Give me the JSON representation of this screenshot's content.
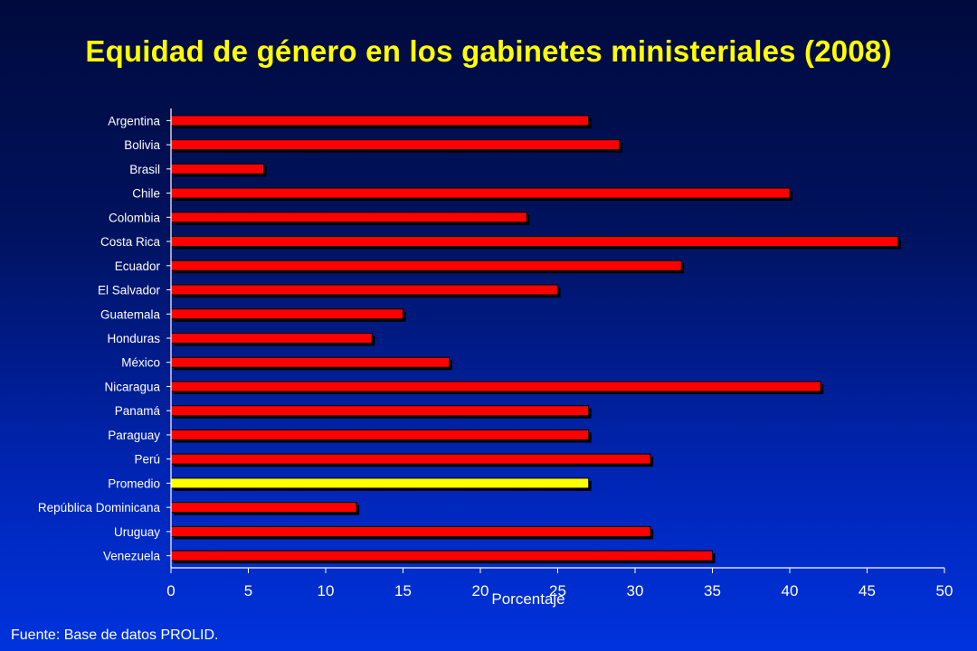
{
  "title": "Equidad de género en los gabinetes ministeriales (2008)",
  "source": "Fuente: Base de datos PROLID.",
  "colors": {
    "bar": "#ff0000",
    "highlight": "#ffff00",
    "shadow": "#000000",
    "axis": "#ffffff",
    "text": "#ffffff",
    "title": "#ffff00"
  },
  "chart_data": {
    "type": "bar",
    "orientation": "horizontal",
    "title": "Equidad de género en los gabinetes ministeriales (2008)",
    "xlabel": "Porcentaje",
    "ylabel": "",
    "xlim": [
      0,
      50
    ],
    "x_ticks": [
      "0",
      "5",
      "10",
      "15",
      "20",
      "25",
      "30",
      "35",
      "40",
      "45",
      "50"
    ],
    "grid": false,
    "highlighted_category": "Promedio",
    "categories": [
      "Argentina",
      "Bolivia",
      "Brasil",
      "Chile",
      "Colombia",
      "Costa Rica",
      "Ecuador",
      "El Salvador",
      "Guatemala",
      "Honduras",
      "México",
      "Nicaragua",
      "Panamá",
      "Paraguay",
      "Perú",
      "Promedio",
      "República Dominicana",
      "Uruguay",
      "Venezuela"
    ],
    "values": [
      27,
      29,
      6,
      40,
      23,
      47,
      33,
      25,
      15,
      13,
      18,
      42,
      27,
      27,
      31,
      27,
      12,
      31,
      35
    ]
  }
}
